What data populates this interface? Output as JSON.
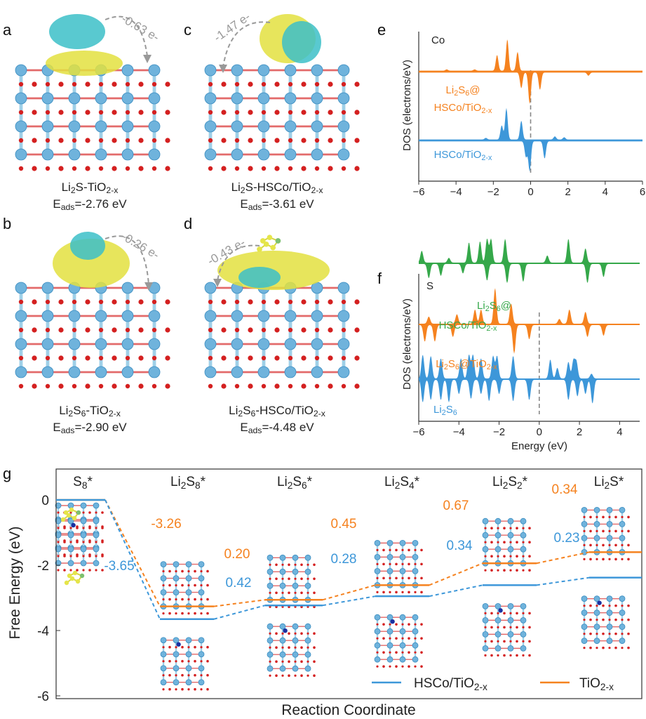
{
  "panels": {
    "a": {
      "letter": "a",
      "title": "Li2S-TiO2-x",
      "energy": "Eads=-2.76 eV",
      "charge": "-0.63 e-"
    },
    "b": {
      "letter": "b",
      "title": "Li2S6-TiO2-x",
      "energy": "Eads=-2.90 eV",
      "charge": "-0.26 e-"
    },
    "c": {
      "letter": "c",
      "title": "Li2S-HSCo/TiO2-x",
      "energy": "Eads=-3.61 eV",
      "charge": "-1.47 e-"
    },
    "d": {
      "letter": "d",
      "title": "Li2S6-HSCo/TiO2-x",
      "energy": "Eads=-4.48 eV",
      "charge": "-0.43 e-"
    }
  },
  "colors": {
    "orange": "#f5821f",
    "blue": "#3d97d9",
    "green": "#35a84a",
    "gray": "#999999"
  },
  "chart_data": [
    {
      "panel": "e",
      "type": "area",
      "element_label": "Co",
      "ylabel": "DOS (electrons/eV)",
      "xlabel": "",
      "xlim": [
        -6,
        6
      ],
      "xticks": [
        "-6",
        "-4",
        "-2",
        "0",
        "2",
        "4",
        "6"
      ],
      "fermi_level": 0,
      "series": [
        {
          "name": "Li2S6@",
          "name2": "HSCo/TiO2-x",
          "color": "#f5821f",
          "peaks": [
            [
              -1.8,
              0.5
            ],
            [
              -1.25,
              1.0
            ],
            [
              -0.7,
              0.6
            ],
            [
              -4.5,
              0.04
            ],
            [
              -3,
              0.04
            ],
            [
              -0.5,
              -0.5
            ],
            [
              -0.05,
              -1.0
            ],
            [
              0.5,
              -0.55
            ],
            [
              3.1,
              -0.1
            ]
          ]
        },
        {
          "name": "HSCo/TiO2-x",
          "color": "#3d97d9",
          "peaks": [
            [
              -1.55,
              0.45
            ],
            [
              -1.3,
              1.0
            ],
            [
              -0.5,
              0.6
            ],
            [
              1.3,
              0.1
            ],
            [
              1.8,
              0.07
            ],
            [
              -2.4,
              0.05
            ],
            [
              -0.25,
              -0.5
            ],
            [
              -0.05,
              -0.95
            ],
            [
              0.75,
              -0.55
            ]
          ]
        }
      ]
    },
    {
      "panel": "f",
      "type": "area",
      "element_label": "S",
      "ylabel": "DOS (electrons/eV)",
      "xlabel": "Energy (eV)",
      "xlim": [
        -6,
        5
      ],
      "xticks": [
        "-6",
        "-4",
        "-2",
        "0",
        "2",
        "4"
      ],
      "fermi_level": 0,
      "series": [
        {
          "name": "Li2S6@",
          "name2": "HSCo/TiO2-x",
          "color": "#35a84a",
          "peaks": [
            [
              -5.85,
              0.5
            ],
            [
              -4.5,
              0.2
            ],
            [
              -3.5,
              0.85
            ],
            [
              -2.95,
              0.9
            ],
            [
              -2.6,
              1.0
            ],
            [
              -2.4,
              1.0
            ],
            [
              -1.7,
              1.0
            ],
            [
              0.4,
              0.3
            ],
            [
              1.45,
              1.0
            ],
            [
              2.3,
              0.6
            ],
            [
              -5.5,
              -0.6
            ],
            [
              -4.9,
              -0.5
            ],
            [
              -3.8,
              -0.4
            ],
            [
              -2.6,
              -0.7
            ],
            [
              -1.6,
              -0.8
            ],
            [
              -0.8,
              -0.75
            ],
            [
              2.4,
              -0.8
            ],
            [
              3.2,
              -0.55
            ]
          ]
        },
        {
          "name": "Li2S6@TiO2-x",
          "color": "#f5821f",
          "peaks": [
            [
              -5.5,
              0.3
            ],
            [
              -4.1,
              0.4
            ],
            [
              -3.2,
              0.6
            ],
            [
              -2.9,
              0.6
            ],
            [
              -2.2,
              1.5
            ],
            [
              -1.4,
              0.85
            ],
            [
              1.0,
              0.2
            ],
            [
              1.5,
              0.6
            ],
            [
              2.3,
              0.5
            ],
            [
              -5.7,
              -0.7
            ],
            [
              -5.2,
              -0.7
            ],
            [
              -4.3,
              -0.5
            ],
            [
              -1.25,
              -1.2
            ],
            [
              -0.5,
              -0.6
            ],
            [
              2.4,
              -0.5
            ],
            [
              3.2,
              -0.45
            ]
          ]
        },
        {
          "name": "Li2S6",
          "color": "#3d97d9",
          "peaks": [
            [
              -5.8,
              1.0
            ],
            [
              -5.4,
              0.95
            ],
            [
              -4.9,
              0.85
            ],
            [
              -3.9,
              0.85
            ],
            [
              -3.5,
              1.0
            ],
            [
              -3.3,
              1.0
            ],
            [
              -2.9,
              0.85
            ],
            [
              -2.3,
              0.95
            ],
            [
              -2.1,
              0.95
            ],
            [
              -1.3,
              0.95
            ],
            [
              0.55,
              0.8
            ],
            [
              0.9,
              0.45
            ],
            [
              1.45,
              0.7
            ],
            [
              1.7,
              0.75
            ],
            [
              1.85,
              0.7
            ],
            [
              2.6,
              0.2
            ],
            [
              -5.8,
              -0.95
            ],
            [
              -5.4,
              -0.85
            ],
            [
              -4.9,
              -0.85
            ],
            [
              -4.5,
              -0.95
            ],
            [
              -4.0,
              -0.6
            ],
            [
              -3.4,
              -0.8
            ],
            [
              -2.9,
              -0.6
            ],
            [
              -2.5,
              -0.9
            ],
            [
              -2.0,
              -0.6
            ],
            [
              -1.3,
              -0.9
            ],
            [
              -0.5,
              -0.85
            ],
            [
              1.45,
              -0.85
            ],
            [
              1.9,
              -0.7
            ],
            [
              2.3,
              -0.6
            ],
            [
              2.65,
              -1.0
            ]
          ]
        }
      ]
    },
    {
      "panel": "g",
      "type": "line",
      "ylabel": "Free Energy (eV)",
      "xlabel": "Reaction Coordinate",
      "ylim": [
        -6,
        1
      ],
      "yticks": [
        "0",
        "-2",
        "-4",
        "-6"
      ],
      "categories": [
        "S8*",
        "Li2S8*",
        "Li2S6*",
        "Li2S4*",
        "Li2S2*",
        "Li2S*"
      ],
      "series": [
        {
          "name": "TiO2-x",
          "color": "#f5821f",
          "values": [
            0,
            -3.26,
            -3.06,
            -2.61,
            -1.94,
            -1.6
          ],
          "step_labels": [
            "-3.26",
            "0.20",
            "0.45",
            "0.67",
            "0.34"
          ]
        },
        {
          "name": "HSCo/TiO2-x",
          "color": "#3d97d9",
          "values": [
            0,
            -3.65,
            -3.23,
            -2.95,
            -2.61,
            -2.38
          ],
          "step_labels": [
            "-3.65",
            "0.42",
            "0.28",
            "0.34",
            "0.23"
          ]
        }
      ],
      "legend": "bottom-right"
    }
  ]
}
